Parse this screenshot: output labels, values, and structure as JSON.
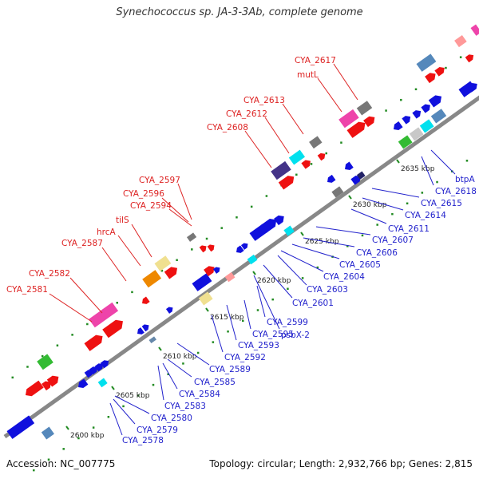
{
  "title": "Synechococcus sp. JA-3-3Ab, complete genome",
  "footer": {
    "accession": "Accession: NC_007775",
    "topology": "Topology: circular; Length: 2,932,766 bp; Genes: 2,815"
  },
  "scale_labels": [
    "2600 kbp",
    "2605 kbp",
    "2610 kbp",
    "2615 kbp",
    "2620 kbp",
    "2625 kbp",
    "2630 kbp",
    "2635 kbp"
  ],
  "colors": {
    "backbone": "#888888",
    "red_label": "#dd2222",
    "blue_label": "#2222cc",
    "tick": "#228b22"
  },
  "red_labels": [
    "CYA_2581",
    "CYA_2582",
    "CYA_2587",
    "hrcA",
    "tilS",
    "CYA_2594",
    "CYA_2596",
    "CYA_2597",
    "CYA_2608",
    "CYA_2612",
    "CYA_2613",
    "mutL",
    "CYA_2617"
  ],
  "blue_labels": [
    "CYA_2578",
    "CYA_2579",
    "CYA_2580",
    "CYA_2583",
    "CYA_2584",
    "CYA_2585",
    "CYA_2589",
    "CYA_2592",
    "CYA_2593",
    "CYA_2595",
    "CYA_2599",
    "psbX-2",
    "CYA_2601",
    "CYA_2603",
    "CYA_2604",
    "CYA_2605",
    "CYA_2606",
    "CYA_2607",
    "CYA_2611",
    "CYA_2614",
    "CYA_2615",
    "CYA_2618",
    "btpA"
  ]
}
